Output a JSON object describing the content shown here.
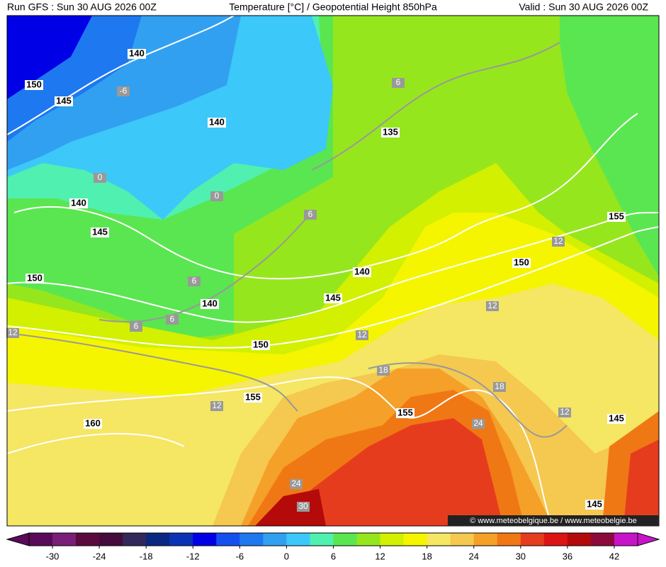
{
  "header": {
    "run": "Run GFS : Sun 30 AUG 2026 00Z",
    "title": "Temperature [°C] / Geopotential Height 850hPa",
    "valid": "Valid : Sun 30 AUG 2026 00Z"
  },
  "map": {
    "height_labels": [
      140,
      150,
      145,
      140,
      135,
      140,
      145,
      155,
      150,
      140,
      150,
      145,
      140,
      150,
      155,
      155,
      160,
      145,
      145
    ],
    "temperature_labels": [
      -6,
      6,
      0,
      0,
      6,
      12,
      6,
      6,
      6,
      12,
      12,
      12,
      18,
      18,
      12,
      12,
      24,
      24,
      30
    ],
    "credit": "© www.meteobelgique.be / www.meteobelgie.be"
  },
  "colorbar": {
    "lim": [
      -33,
      45
    ],
    "ticks": [
      -30,
      -24,
      -18,
      -12,
      -6,
      0,
      6,
      12,
      18,
      24,
      30,
      36,
      42
    ],
    "colors": [
      "#5a0a5a",
      "#7a1e7a",
      "#5a0a3c",
      "#460a3c",
      "#32285a",
      "#0a2882",
      "#0a32b4",
      "#0000e6",
      "#1450f0",
      "#1e78f0",
      "#32a0f0",
      "#3cc8f8",
      "#50f0b0",
      "#5ae650",
      "#96e61e",
      "#d2f000",
      "#f5f500",
      "#f5e664",
      "#f5c850",
      "#f5a028",
      "#f07814",
      "#e63c1e",
      "#dc1414",
      "#b40a0a",
      "#8c0a3c",
      "#c814c8"
    ]
  }
}
